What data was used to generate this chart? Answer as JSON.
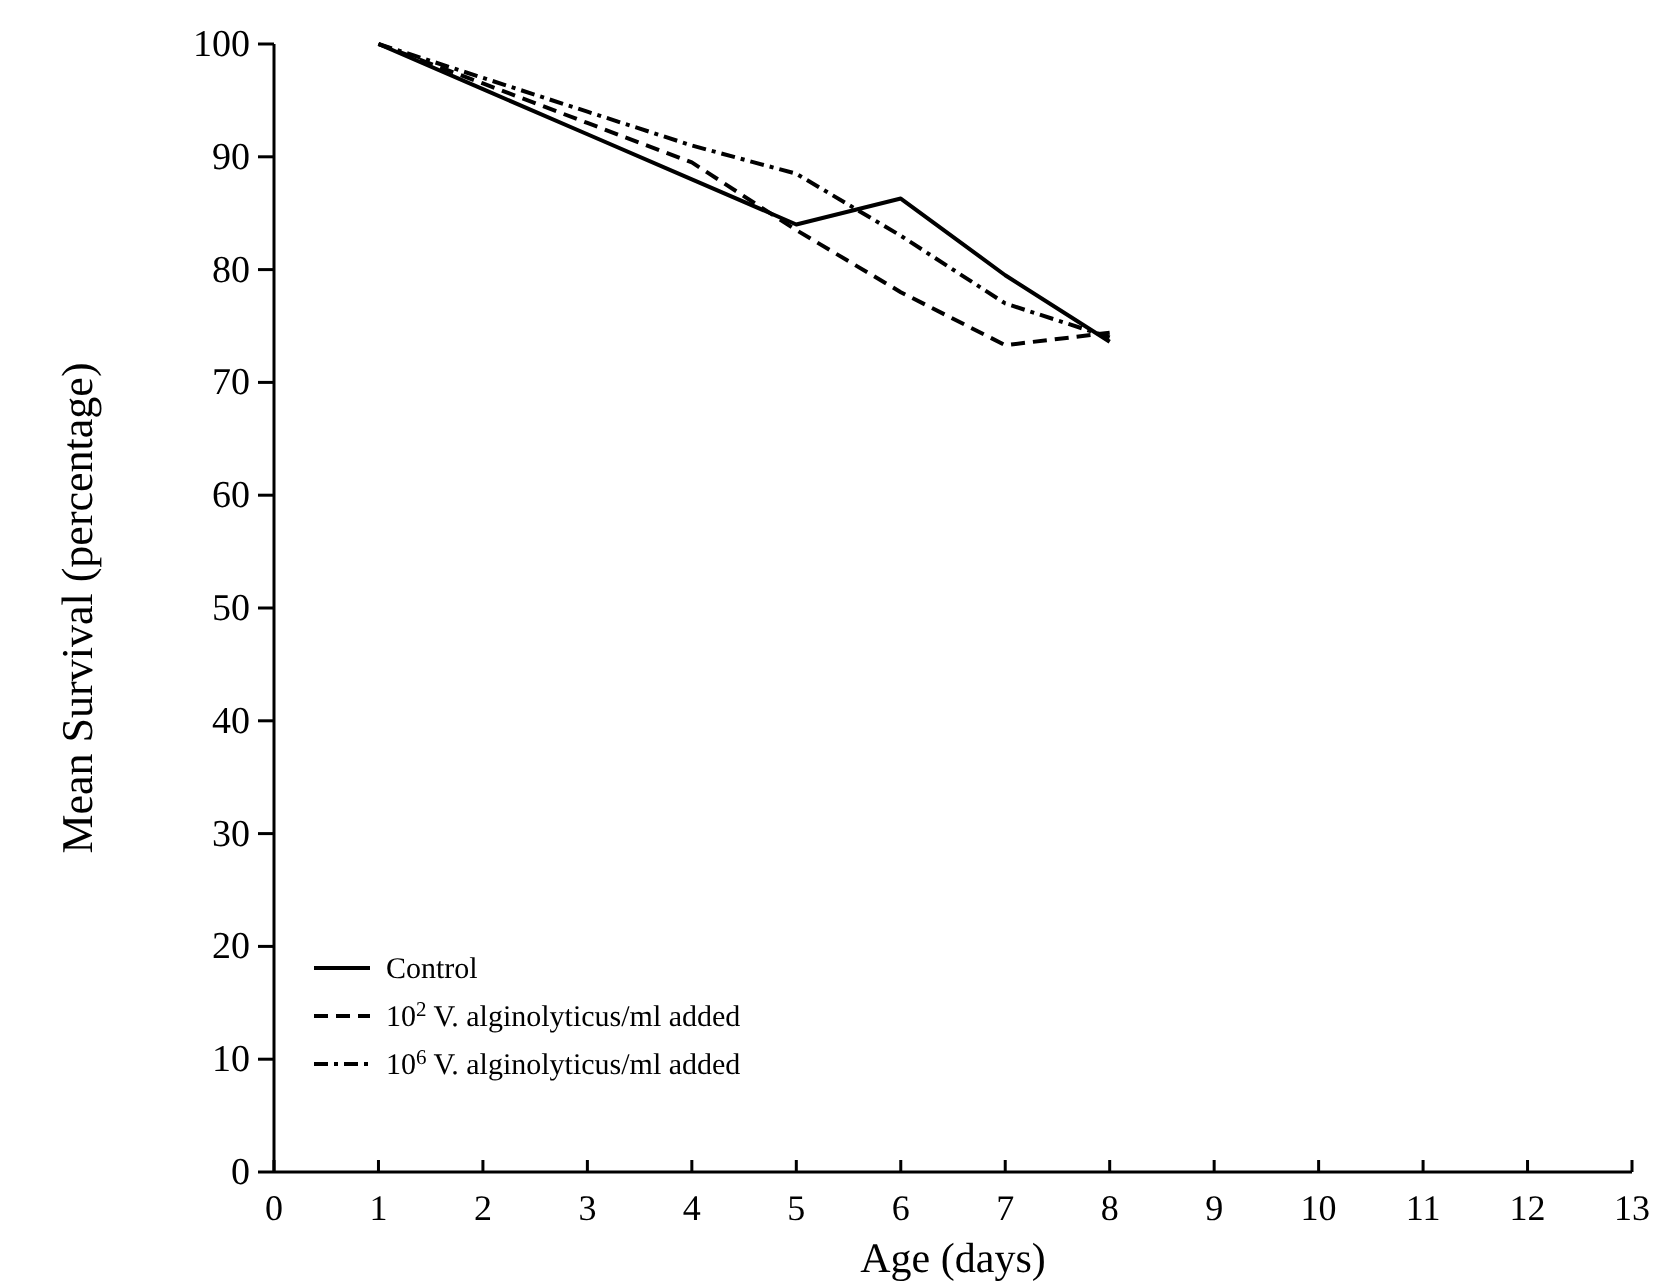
{
  "chart_data": {
    "type": "line",
    "xlabel": "Age (days)",
    "ylabel": "Mean Survival (percentage)",
    "xlim": [
      0,
      13
    ],
    "xticks": [
      0,
      1,
      2,
      3,
      4,
      5,
      6,
      7,
      8,
      9,
      10,
      11,
      12,
      13
    ],
    "ylim": [
      0,
      100
    ],
    "yticks": [
      0,
      10,
      20,
      30,
      40,
      50,
      60,
      70,
      80,
      90,
      100
    ],
    "grid": false,
    "legend": "bottom left",
    "marker": "none",
    "x": [
      1,
      2,
      3,
      4,
      5,
      6,
      7,
      8
    ],
    "series": [
      {
        "name": "Control",
        "color": "#000000",
        "line_style": "solid",
        "values": [
          100,
          96,
          92,
          88,
          84,
          86.3,
          79.5,
          73.6
        ]
      },
      {
        "name": "10$^{2}$ V. alginolyticus/ml added",
        "color": "#000000",
        "line_style": "dashed",
        "values": [
          100,
          96.5,
          93,
          89.5,
          83.5,
          78,
          73.3,
          74.4
        ]
      },
      {
        "name": "10$^{6}$ V. alginolyticus/ml added",
        "color": "#000000",
        "line_style": "dashdot",
        "values": [
          100,
          97,
          94,
          91,
          88.5,
          83,
          77,
          74
        ]
      }
    ]
  }
}
